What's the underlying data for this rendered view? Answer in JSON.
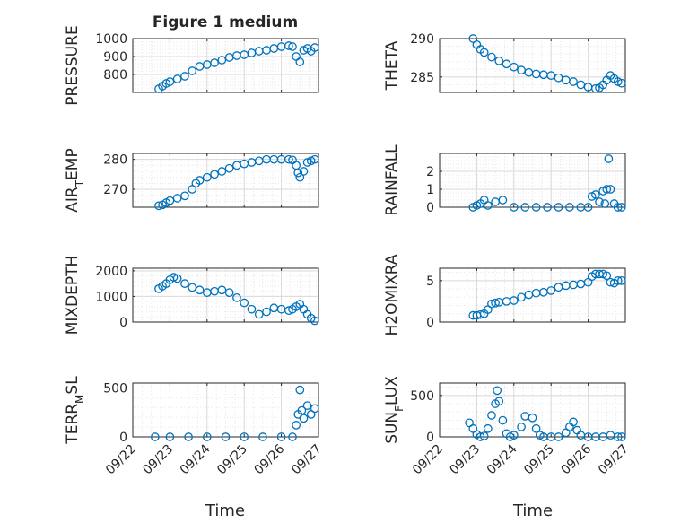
{
  "figure": {
    "title": "Figure 1 medium",
    "xlabel": "Time",
    "x_tick_labels": [
      "09/22",
      "09/23",
      "09/24",
      "09/25",
      "09/26",
      "09/27"
    ],
    "marker_color": "#0072BD"
  },
  "chart_data": [
    {
      "type": "scatter",
      "id": "pressure",
      "column": "left",
      "row": 0,
      "ylabel": "PRESSURE",
      "ylabel_sub": null,
      "ylim": [
        700,
        1000
      ],
      "yticks": [
        800,
        900,
        1000
      ],
      "xlim_days": [
        0,
        5
      ],
      "x": [
        0.7,
        0.8,
        0.9,
        1.0,
        1.2,
        1.4,
        1.6,
        1.8,
        2.0,
        2.2,
        2.4,
        2.6,
        2.8,
        3.0,
        3.2,
        3.4,
        3.6,
        3.8,
        4.0,
        4.2,
        4.3,
        4.4,
        4.5,
        4.6,
        4.7,
        4.8,
        4.9
      ],
      "y": [
        720,
        735,
        750,
        760,
        775,
        790,
        820,
        845,
        855,
        865,
        880,
        895,
        905,
        910,
        920,
        930,
        935,
        945,
        955,
        960,
        955,
        900,
        870,
        935,
        945,
        930,
        950
      ]
    },
    {
      "type": "scatter",
      "id": "theta",
      "column": "right",
      "row": 0,
      "ylabel": "THETA",
      "ylabel_sub": null,
      "ylim": [
        283,
        290
      ],
      "yticks": [
        285,
        290
      ],
      "xlim_days": [
        0,
        5
      ],
      "x": [
        0.9,
        1.0,
        1.1,
        1.2,
        1.4,
        1.6,
        1.8,
        2.0,
        2.2,
        2.4,
        2.6,
        2.8,
        3.0,
        3.2,
        3.4,
        3.6,
        3.8,
        4.0,
        4.2,
        4.3,
        4.4,
        4.5,
        4.6,
        4.7,
        4.8,
        4.9
      ],
      "y": [
        290,
        289.2,
        288.6,
        288.2,
        287.6,
        287.1,
        286.7,
        286.3,
        285.9,
        285.6,
        285.4,
        285.3,
        285.2,
        284.9,
        284.6,
        284.4,
        284.0,
        283.7,
        283.5,
        283.6,
        284.0,
        284.6,
        285.2,
        284.8,
        284.4,
        284.2
      ]
    },
    {
      "type": "scatter",
      "id": "air-temp",
      "column": "left",
      "row": 1,
      "ylabel": "AIR",
      "ylabel_sub": "T",
      "ylabel_suffix": "EMP",
      "ylim": [
        264,
        282
      ],
      "yticks": [
        270,
        280
      ],
      "xlim_days": [
        0,
        5
      ],
      "x": [
        0.7,
        0.8,
        0.9,
        1.0,
        1.2,
        1.4,
        1.6,
        1.7,
        1.8,
        2.0,
        2.2,
        2.4,
        2.6,
        2.8,
        3.0,
        3.2,
        3.4,
        3.6,
        3.8,
        4.0,
        4.2,
        4.3,
        4.4,
        4.45,
        4.5,
        4.6,
        4.7,
        4.8,
        4.9
      ],
      "y": [
        264.5,
        264.8,
        265.5,
        266.2,
        267.0,
        267.8,
        270.0,
        272.0,
        273.0,
        274.0,
        275.0,
        276.0,
        277.0,
        278.0,
        278.5,
        279.0,
        279.5,
        280.0,
        280.0,
        280.0,
        280.0,
        279.8,
        278.0,
        275.5,
        274.0,
        276.0,
        279.0,
        279.5,
        280.0
      ]
    },
    {
      "type": "scatter",
      "id": "rainfall",
      "column": "right",
      "row": 1,
      "ylabel": "RAINFALL",
      "ylabel_sub": null,
      "ylim": [
        0,
        3
      ],
      "yticks": [
        0,
        1,
        2
      ],
      "xlim_days": [
        0,
        5
      ],
      "x": [
        0.9,
        1.0,
        1.1,
        1.2,
        1.3,
        1.5,
        1.7,
        2.0,
        2.3,
        2.6,
        2.9,
        3.2,
        3.5,
        3.8,
        4.0,
        4.1,
        4.2,
        4.3,
        4.4,
        4.45,
        4.5,
        4.55,
        4.6,
        4.7,
        4.8,
        4.9
      ],
      "y": [
        0,
        0.1,
        0.2,
        0.4,
        0.1,
        0.3,
        0.4,
        0,
        0,
        0,
        0,
        0,
        0,
        0,
        0,
        0.6,
        0.7,
        0.3,
        0.9,
        0.2,
        1.0,
        2.7,
        1.0,
        0.2,
        0,
        0
      ]
    },
    {
      "type": "scatter",
      "id": "mixdepth",
      "column": "left",
      "row": 2,
      "ylabel": "MIXDEPTH",
      "ylabel_sub": null,
      "ylim": [
        0,
        2100
      ],
      "yticks": [
        0,
        1000,
        2000
      ],
      "xlim_days": [
        0,
        5
      ],
      "x": [
        0.7,
        0.8,
        0.9,
        1.0,
        1.1,
        1.2,
        1.4,
        1.6,
        1.8,
        2.0,
        2.2,
        2.4,
        2.6,
        2.8,
        3.0,
        3.2,
        3.4,
        3.6,
        3.8,
        4.0,
        4.2,
        4.3,
        4.4,
        4.5,
        4.6,
        4.7,
        4.8,
        4.9
      ],
      "y": [
        1300,
        1400,
        1500,
        1650,
        1750,
        1700,
        1500,
        1350,
        1250,
        1150,
        1200,
        1250,
        1150,
        950,
        750,
        500,
        300,
        400,
        550,
        500,
        450,
        500,
        600,
        700,
        500,
        300,
        150,
        50
      ]
    },
    {
      "type": "scatter",
      "id": "h2omixra",
      "column": "right",
      "row": 2,
      "ylabel": "H2OMIXRA",
      "ylabel_sub": null,
      "ylim": [
        0,
        6.5
      ],
      "yticks": [
        0,
        5
      ],
      "xlim_days": [
        0,
        5
      ],
      "x": [
        0.9,
        1.0,
        1.1,
        1.2,
        1.3,
        1.4,
        1.5,
        1.6,
        1.8,
        2.0,
        2.2,
        2.4,
        2.6,
        2.8,
        3.0,
        3.2,
        3.4,
        3.6,
        3.8,
        4.0,
        4.1,
        4.2,
        4.3,
        4.4,
        4.5,
        4.6,
        4.7,
        4.8,
        4.9
      ],
      "y": [
        0.8,
        0.8,
        0.9,
        1.0,
        1.5,
        2.2,
        2.3,
        2.4,
        2.5,
        2.6,
        3.0,
        3.3,
        3.5,
        3.6,
        3.8,
        4.2,
        4.4,
        4.5,
        4.6,
        4.8,
        5.5,
        5.8,
        5.8,
        5.8,
        5.6,
        4.8,
        4.7,
        5.0,
        5.0
      ]
    },
    {
      "type": "scatter",
      "id": "terr-msl",
      "column": "left",
      "row": 3,
      "ylabel": "TERR",
      "ylabel_sub": "M",
      "ylabel_suffix": "SL",
      "ylim": [
        0,
        550
      ],
      "yticks": [
        0,
        500
      ],
      "xlim_days": [
        0,
        5
      ],
      "x": [
        0.6,
        1.0,
        1.5,
        2.0,
        2.5,
        3.0,
        3.5,
        4.0,
        4.3,
        4.4,
        4.45,
        4.5,
        4.55,
        4.6,
        4.7,
        4.8,
        4.9
      ],
      "y": [
        0,
        0,
        0,
        0,
        0,
        0,
        0,
        0,
        0,
        120,
        230,
        480,
        270,
        190,
        320,
        230,
        290
      ]
    },
    {
      "type": "scatter",
      "id": "sunflux",
      "column": "right",
      "row": 3,
      "ylabel": "SUN",
      "ylabel_sub": "F",
      "ylabel_suffix": "LUX",
      "ylim": [
        0,
        650
      ],
      "yticks": [
        0,
        500
      ],
      "xlim_days": [
        0,
        5
      ],
      "x": [
        0.8,
        0.9,
        1.0,
        1.1,
        1.2,
        1.3,
        1.4,
        1.5,
        1.55,
        1.6,
        1.7,
        1.8,
        1.9,
        2.0,
        2.2,
        2.3,
        2.5,
        2.6,
        2.7,
        2.8,
        3.0,
        3.2,
        3.4,
        3.5,
        3.6,
        3.7,
        3.8,
        4.0,
        4.2,
        4.4,
        4.6,
        4.8,
        4.9
      ],
      "y": [
        170,
        100,
        30,
        0,
        10,
        100,
        260,
        400,
        560,
        430,
        200,
        40,
        0,
        20,
        120,
        250,
        230,
        100,
        20,
        0,
        0,
        0,
        50,
        120,
        180,
        80,
        20,
        0,
        0,
        0,
        20,
        0,
        0
      ]
    }
  ]
}
